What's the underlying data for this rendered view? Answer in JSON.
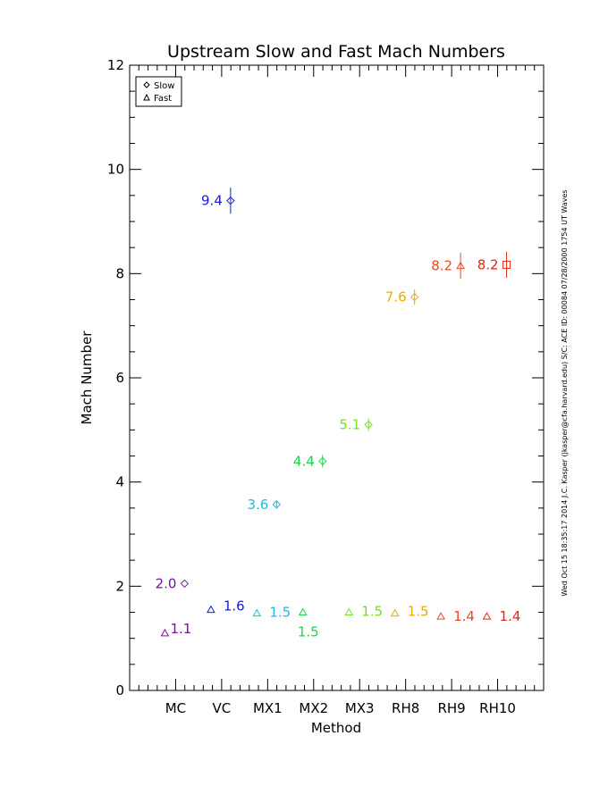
{
  "chart_data": {
    "type": "scatter",
    "title": "Upstream Slow and Fast Mach Numbers",
    "xlabel": "Method",
    "ylabel": "Mach Number",
    "categories": [
      "MC",
      "VC",
      "MX1",
      "MX2",
      "MX3",
      "RH8",
      "RH9",
      "RH10"
    ],
    "ylim": [
      0,
      12
    ],
    "yticks": [
      "0",
      "2",
      "4",
      "6",
      "8",
      "10",
      "12"
    ],
    "grid": false,
    "legend": {
      "position": "top-left",
      "entries": [
        "Slow",
        "Fast"
      ]
    },
    "series": [
      {
        "name": "Slow",
        "marker": "diamond",
        "values": [
          2.05,
          9.4,
          3.57,
          4.4,
          5.1,
          7.55,
          8.15,
          8.17
        ],
        "markers": [
          "diamond",
          "diamond",
          "diamond",
          "diamond",
          "diamond",
          "diamond",
          "triangle",
          "square"
        ],
        "error": [
          0,
          0.25,
          0.08,
          0.12,
          0.12,
          0.15,
          0.25,
          0.25
        ],
        "labels": [
          "2.0",
          "9.4",
          "3.6",
          "4.4",
          "5.1",
          "7.6",
          "8.2",
          "8.2"
        ]
      },
      {
        "name": "Fast",
        "marker": "triangle",
        "values": [
          1.1,
          1.55,
          1.48,
          1.5,
          1.5,
          1.48,
          1.42,
          1.42
        ],
        "labels": [
          "1.1",
          "1.6",
          "1.5",
          "1.5",
          "1.5",
          "1.5",
          "1.4",
          "1.4"
        ]
      }
    ],
    "colors": [
      "#7a0fa0",
      "#1818e0",
      "#18bce8",
      "#22d050",
      "#78e028",
      "#f0a800",
      "#f04818",
      "#e02810"
    ],
    "side_text": "Wed Oct 15 18:35:17 2014   J.C. Kasper (jkasper@cfa.harvard.edu)   S/C: ACE ID: 00084 07/28/2000   1754 UT Waves"
  }
}
